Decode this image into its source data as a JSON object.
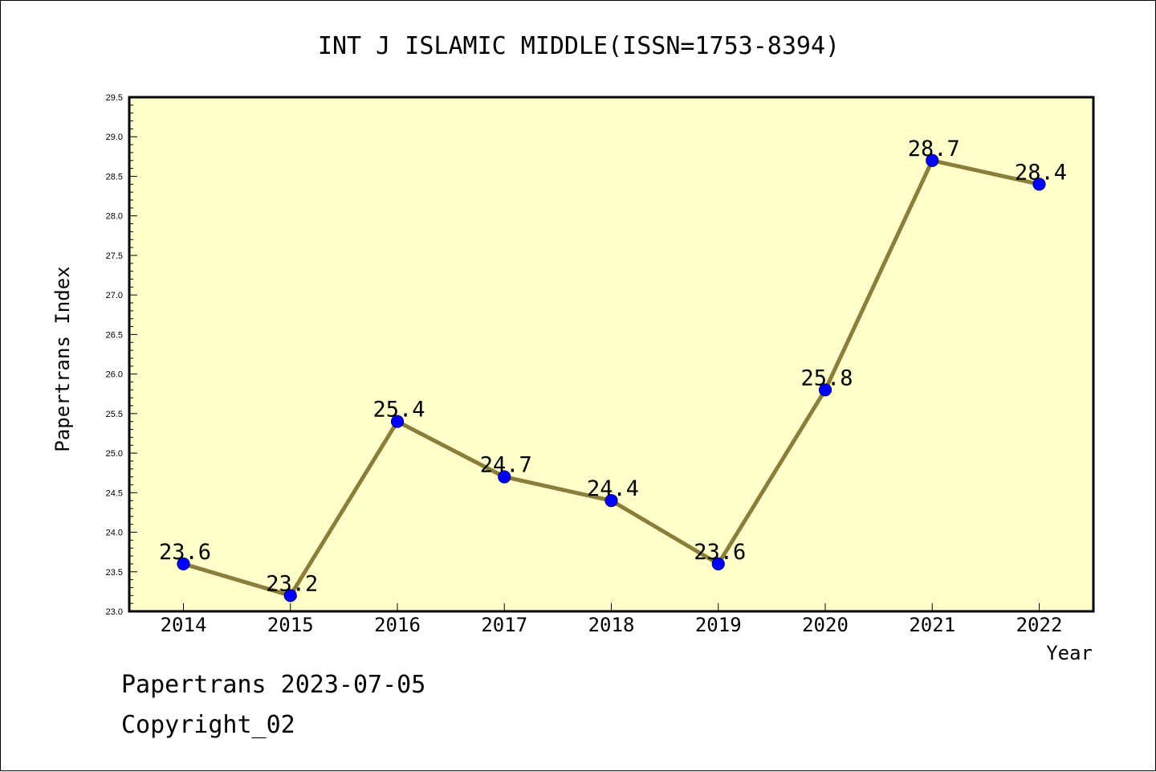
{
  "chart_data": {
    "type": "line",
    "title": "INT J ISLAMIC MIDDLE(ISSN=1753-8394)",
    "xlabel": "Year",
    "ylabel": "Papertrans Index",
    "categories": [
      "2014",
      "2015",
      "2016",
      "2017",
      "2018",
      "2019",
      "2020",
      "2021",
      "2022"
    ],
    "series": [
      {
        "values": [
          23.6,
          23.2,
          25.4,
          24.7,
          24.4,
          23.6,
          25.8,
          28.7,
          28.4
        ],
        "data_labels": [
          "23.6",
          "23.2",
          "25.4",
          "24.7",
          "24.4",
          "23.6",
          "25.8",
          "28.7",
          "28.4"
        ]
      }
    ],
    "ylim": [
      23.0,
      29.5
    ],
    "yticks": [
      "23.0",
      "23.5",
      "24.0",
      "24.5",
      "25.0",
      "25.5",
      "26.0",
      "26.5",
      "27.0",
      "27.5",
      "28.0",
      "28.5",
      "29.0",
      "29.5"
    ],
    "grid": false,
    "legend": "none",
    "colors": {
      "plot_background": "#ffffcc",
      "line": "#8b7d3a",
      "marker": "#0000ff",
      "marker_edge": "#000080",
      "axis": "#000000",
      "text": "#000000"
    }
  },
  "footer": {
    "line1": "Papertrans 2023-07-05",
    "line2": "Copyright_02"
  }
}
